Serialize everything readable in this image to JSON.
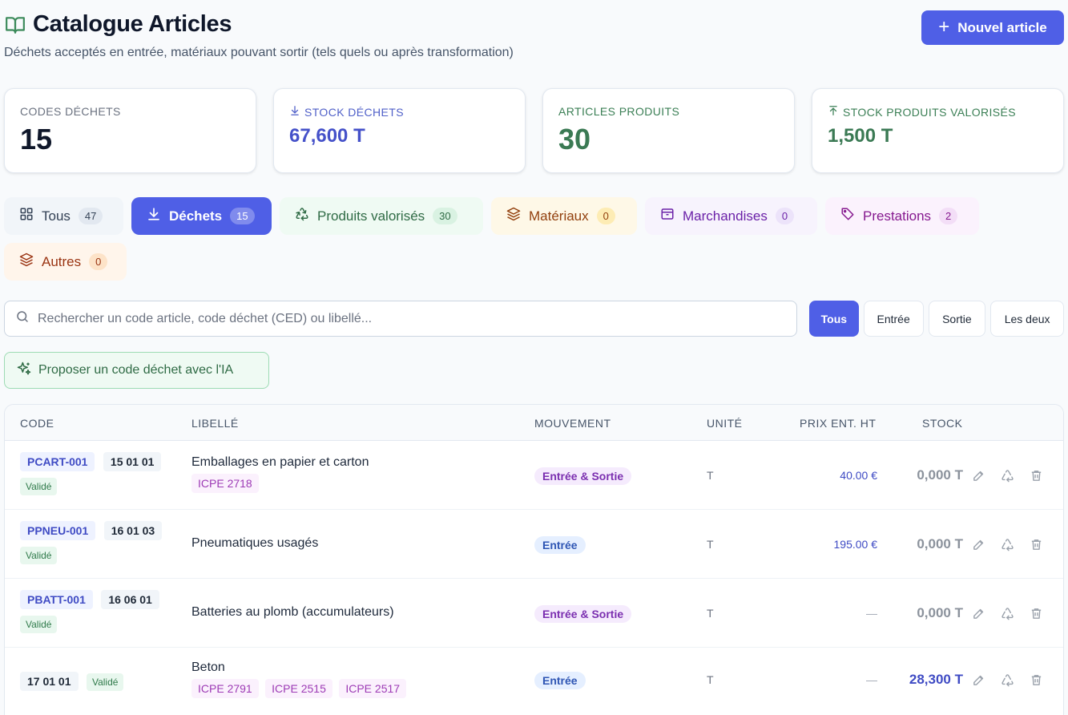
{
  "header": {
    "title": "Catalogue Articles",
    "subtitle": "Déchets acceptés en entrée, matériaux pouvant sortir (tels quels ou après transformation)",
    "new_button_label": "Nouvel article",
    "title_icon": "book-open-icon"
  },
  "stats": [
    {
      "label": "CODES DÉCHETS",
      "value": "15",
      "icon": ""
    },
    {
      "label": "STOCK DÉCHETS",
      "value": "67,600 T",
      "icon": "arrow-down-icon"
    },
    {
      "label": "ARTICLES PRODUITS",
      "value": "30",
      "icon": ""
    },
    {
      "label": "STOCK PRODUITS VALORISÉS",
      "value": "1,500 T",
      "icon": "arrow-up-icon"
    }
  ],
  "filters": [
    {
      "label": "Tous",
      "count": "47",
      "icon": "grid-icon"
    },
    {
      "label": "Déchets",
      "count": "15",
      "icon": "download-icon",
      "active": true
    },
    {
      "label": "Produits valorisés",
      "count": "30",
      "icon": "recycle-icon"
    },
    {
      "label": "Matériaux",
      "count": "0",
      "icon": "layers-icon"
    },
    {
      "label": "Marchandises",
      "count": "0",
      "icon": "package-icon"
    },
    {
      "label": "Prestations",
      "count": "2",
      "icon": "tag-icon"
    },
    {
      "label": "Autres",
      "count": "0",
      "icon": "layers-icon"
    }
  ],
  "search": {
    "placeholder": "Rechercher un code article, code déchet (CED) ou libellé...",
    "value": ""
  },
  "movement_filter": {
    "options": [
      "Tous",
      "Entrée",
      "Sortie",
      "Les deux"
    ],
    "selected": "Tous"
  },
  "ai_button_label": "Proposer un code déchet avec l'IA",
  "table": {
    "columns": [
      "CODE",
      "LIBELLÉ",
      "MOUVEMENT",
      "UNITÉ",
      "PRIX ENT. HT",
      "STOCK"
    ],
    "rows": [
      {
        "article_code": "PCART-001",
        "ced": "15 01 01",
        "status": "Validé",
        "libelle": "Emballages en papier et carton",
        "icpe": [
          "ICPE 2718"
        ],
        "mouvement": "Entrée & Sortie",
        "unite": "T",
        "prix": "40.00 €",
        "stock": "0,000 T"
      },
      {
        "article_code": "PPNEU-001",
        "ced": "16 01 03",
        "status": "Validé",
        "libelle": "Pneumatiques usagés",
        "icpe": [],
        "mouvement": "Entrée",
        "unite": "T",
        "prix": "195.00 €",
        "stock": "0,000 T"
      },
      {
        "article_code": "PBATT-001",
        "ced": "16 06 01",
        "status": "Validé",
        "libelle": "Batteries au plomb (accumulateurs)",
        "icpe": [],
        "mouvement": "Entrée & Sortie",
        "unite": "T",
        "prix": "—",
        "stock": "0,000 T"
      },
      {
        "article_code": "",
        "ced": "17 01 01",
        "status": "Validé",
        "libelle": "Beton",
        "icpe": [
          "ICPE 2791",
          "ICPE 2515",
          "ICPE 2517"
        ],
        "mouvement": "Entrée",
        "unite": "T",
        "prix": "—",
        "stock": "28,300 T"
      }
    ]
  },
  "colors": {
    "primary": "#4f5fe6",
    "green": "#3b7a54",
    "blue_value": "#4551c9"
  }
}
